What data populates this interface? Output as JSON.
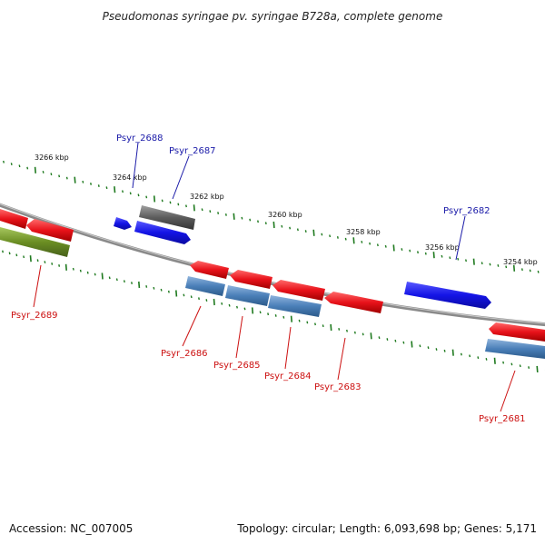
{
  "title": "Pseudomonas syringae pv. syringae B728a, complete genome",
  "footer": {
    "accession": "Accession: NC_007005",
    "summary": "Topology: circular; Length: 6,093,698 bp; Genes: 5,171"
  },
  "colors": {
    "backbone": "#8a8a8a",
    "tick": "#1f7a1f",
    "forward_label": "#1a1aa8",
    "reverse_label": "#cc1111",
    "gene_red": "#e8121a",
    "gene_blue": "#1414e6",
    "gene_steel": "#4a7fb8",
    "gene_gray": "#5c5c5c",
    "gene_olive": "#6b8e23"
  },
  "kbp_labels": [
    "3266 kbp",
    "3264 kbp",
    "3262 kbp",
    "3260 kbp",
    "3258 kbp",
    "3256 kbp",
    "3254 kbp"
  ],
  "gene_labels": [
    {
      "text": "Psyr_2688",
      "strand": "forward"
    },
    {
      "text": "Psyr_2687",
      "strand": "forward"
    },
    {
      "text": "Psyr_2682",
      "strand": "forward"
    },
    {
      "text": "Psyr_2689",
      "strand": "reverse"
    },
    {
      "text": "Psyr_2686",
      "strand": "reverse"
    },
    {
      "text": "Psyr_2685",
      "strand": "reverse"
    },
    {
      "text": "Psyr_2684",
      "strand": "reverse"
    },
    {
      "text": "Psyr_2683",
      "strand": "reverse"
    },
    {
      "text": "Psyr_2681",
      "strand": "reverse"
    }
  ]
}
